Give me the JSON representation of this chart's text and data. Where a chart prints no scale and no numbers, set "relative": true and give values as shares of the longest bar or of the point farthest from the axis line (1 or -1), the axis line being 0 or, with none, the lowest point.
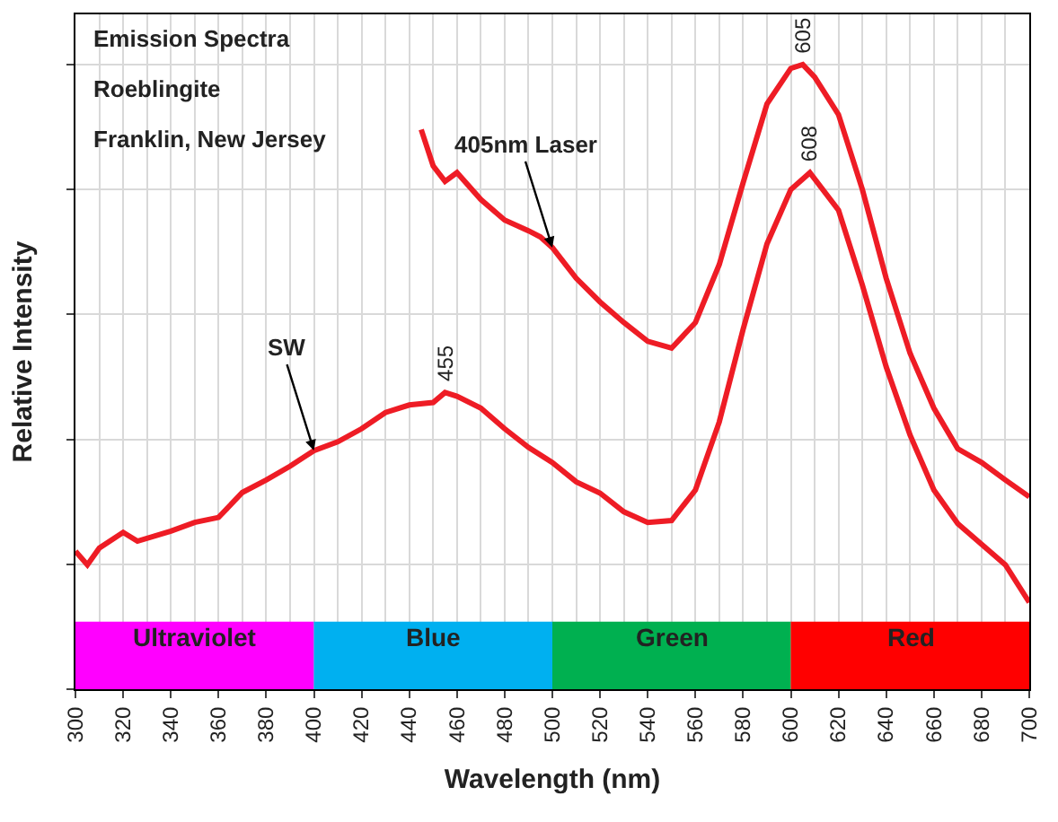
{
  "chart_data": {
    "type": "line",
    "title": "Emission Spectra",
    "subtitle": "Roeblingite",
    "xlabel": "Wavelength (nm)",
    "ylabel": "Relative Intensity",
    "relative": true,
    "xlim": [
      300,
      700
    ],
    "xticks": [
      300,
      320,
      340,
      360,
      380,
      400,
      420,
      440,
      460,
      480,
      500,
      520,
      540,
      560,
      580,
      600,
      620,
      640,
      660,
      680,
      700
    ],
    "grid": true,
    "marker": "none",
    "line_style": "solid",
    "series": [
      {
        "color": "#ee1c25",
        "x": [
          300,
          305,
          310,
          320,
          326,
          340,
          350,
          360,
          370,
          380,
          390,
          400,
          410,
          420,
          430,
          440,
          450,
          455,
          460,
          470,
          480,
          490,
          500,
          510,
          520,
          530,
          540,
          550,
          560,
          570,
          580,
          590,
          600,
          608,
          620,
          630,
          640,
          650,
          660,
          670,
          680,
          690,
          700
        ],
        "values": [
          0.221,
          0.199,
          0.226,
          0.251,
          0.237,
          0.253,
          0.267,
          0.275,
          0.315,
          0.335,
          0.357,
          0.382,
          0.396,
          0.417,
          0.443,
          0.455,
          0.459,
          0.475,
          0.469,
          0.45,
          0.417,
          0.387,
          0.363,
          0.332,
          0.314,
          0.284,
          0.267,
          0.27,
          0.319,
          0.428,
          0.576,
          0.713,
          0.8,
          0.827,
          0.767,
          0.647,
          0.516,
          0.407,
          0.319,
          0.265,
          0.232,
          0.199,
          0.139
        ]
      },
      {
        "color": "#ee1c25",
        "x": [
          445,
          450,
          455,
          460,
          470,
          480,
          490,
          495,
          500,
          510,
          520,
          530,
          540,
          550,
          560,
          570,
          580,
          590,
          600,
          605,
          610,
          620,
          630,
          640,
          650,
          660,
          670,
          680,
          690,
          700
        ],
        "values": [
          0.896,
          0.838,
          0.813,
          0.827,
          0.784,
          0.751,
          0.734,
          0.724,
          0.707,
          0.658,
          0.62,
          0.587,
          0.557,
          0.546,
          0.587,
          0.68,
          0.811,
          0.937,
          0.994,
          1.0,
          0.98,
          0.92,
          0.8,
          0.658,
          0.538,
          0.45,
          0.385,
          0.363,
          0.335,
          0.308
        ]
      }
    ],
    "annotations": [
      "Franklin, New Jersey",
      {
        "text": "SW",
        "x": 400,
        "y": 0.382
      },
      {
        "text": "405nm Laser",
        "x": 500,
        "y": 0.707
      },
      {
        "text": "455",
        "x": 455,
        "y": 0.475
      },
      {
        "text": "605",
        "x": 605,
        "y": 1.0
      },
      {
        "text": "608",
        "x": 608,
        "y": 0.827
      }
    ],
    "bands": [
      {
        "axis": "x",
        "from": 300,
        "to": 400,
        "label": "Ultraviolet",
        "color": "#ff00ff"
      },
      {
        "axis": "x",
        "from": 400,
        "to": 500,
        "label": "Blue",
        "color": "#00b0f0"
      },
      {
        "axis": "x",
        "from": 500,
        "to": 600,
        "label": "Green",
        "color": "#00b050"
      },
      {
        "axis": "x",
        "from": 600,
        "to": 700,
        "label": "Red",
        "color": "#ff0000"
      }
    ]
  }
}
